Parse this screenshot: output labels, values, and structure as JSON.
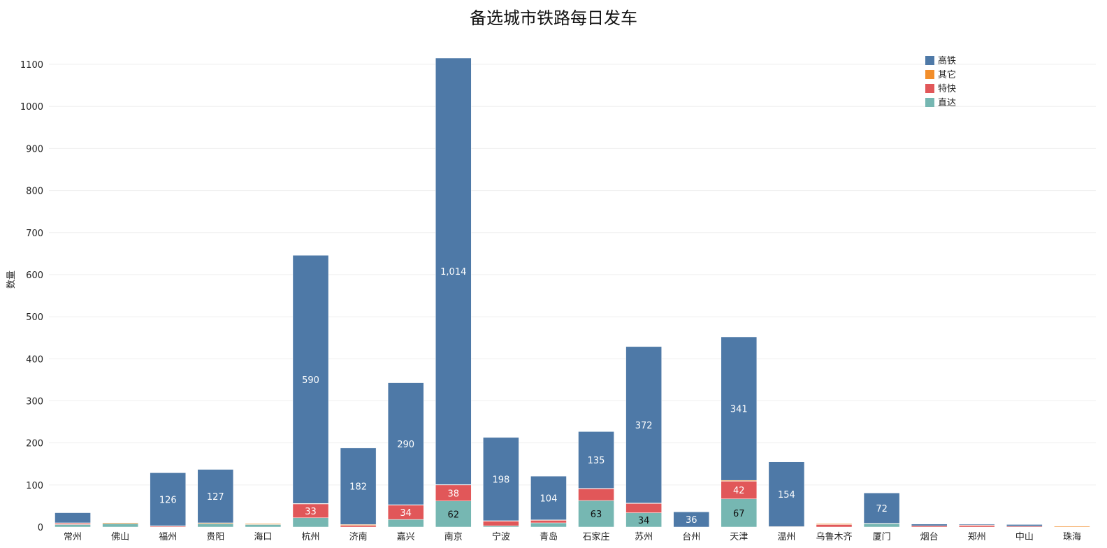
{
  "chart_data": {
    "type": "bar",
    "stacked": true,
    "title": "备选城市铁路每日发车",
    "xlabel": "",
    "ylabel": "数量",
    "ylim": [
      0,
      1120
    ],
    "yticks": [
      0,
      100,
      200,
      300,
      400,
      500,
      600,
      700,
      800,
      900,
      1000,
      1100
    ],
    "grid": true,
    "legend_position": "top-right",
    "categories": [
      "常州",
      "佛山",
      "福州",
      "贵阳",
      "海口",
      "杭州",
      "济南",
      "嘉兴",
      "南京",
      "宁波",
      "青岛",
      "石家庄",
      "苏州",
      "台州",
      "天津",
      "温州",
      "乌鲁木齐",
      "厦门",
      "烟台",
      "郑州",
      "中山",
      "珠海"
    ],
    "series": [
      {
        "name": "直达",
        "color": "#76b7b2",
        "values": [
          6,
          8,
          0,
          8,
          6,
          22,
          0,
          18,
          62,
          3,
          10,
          63,
          34,
          0,
          67,
          0,
          0,
          8,
          0,
          0,
          0,
          0
        ]
      },
      {
        "name": "特快",
        "color": "#e15759",
        "values": [
          3,
          0,
          2,
          0,
          0,
          33,
          4,
          34,
          38,
          11,
          6,
          28,
          22,
          0,
          42,
          0,
          6,
          0,
          3,
          4,
          2,
          0
        ]
      },
      {
        "name": "其它",
        "color": "#f28e2b",
        "values": [
          1,
          2,
          1,
          2,
          2,
          1,
          2,
          1,
          1,
          1,
          1,
          1,
          1,
          0,
          2,
          1,
          2,
          1,
          0,
          1,
          0,
          2
        ]
      },
      {
        "name": "高铁",
        "color": "#4e79a7",
        "values": [
          24,
          0,
          126,
          127,
          0,
          590,
          182,
          290,
          1014,
          198,
          104,
          135,
          372,
          36,
          341,
          154,
          0,
          72,
          4,
          2,
          4,
          0
        ]
      }
    ],
    "legend_order": [
      "高铁",
      "其它",
      "特快",
      "直达"
    ]
  }
}
